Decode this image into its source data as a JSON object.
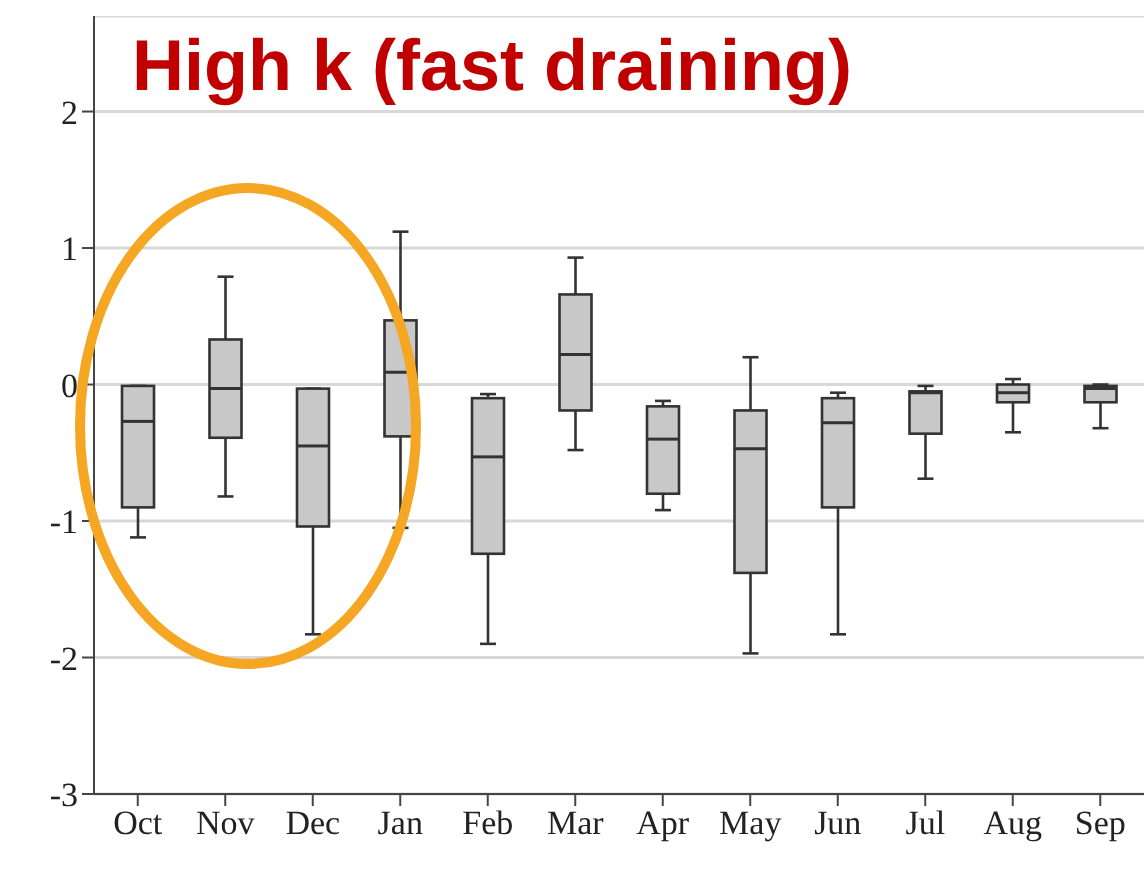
{
  "chart_data": {
    "type": "box",
    "title": "High k (fast draining)",
    "categories": [
      "Oct",
      "Nov",
      "Dec",
      "Jan",
      "Feb",
      "Mar",
      "Apr",
      "May",
      "Jun",
      "Jul",
      "Aug",
      "Sep"
    ],
    "boxes": [
      {
        "low": -1.12,
        "q1": -0.9,
        "median": -0.27,
        "q3": -0.01,
        "high": -0.01
      },
      {
        "low": -0.82,
        "q1": -0.39,
        "median": -0.03,
        "q3": 0.33,
        "high": 0.79
      },
      {
        "low": -1.83,
        "q1": -1.04,
        "median": -0.45,
        "q3": -0.03,
        "high": -0.03
      },
      {
        "low": -1.05,
        "q1": -0.38,
        "median": 0.09,
        "q3": 0.47,
        "high": 1.12
      },
      {
        "low": -1.9,
        "q1": -1.24,
        "median": -0.53,
        "q3": -0.1,
        "high": -0.07
      },
      {
        "low": -0.48,
        "q1": -0.19,
        "median": 0.22,
        "q3": 0.66,
        "high": 0.93
      },
      {
        "low": -0.92,
        "q1": -0.8,
        "median": -0.4,
        "q3": -0.16,
        "high": -0.12
      },
      {
        "low": -1.97,
        "q1": -1.38,
        "median": -0.47,
        "q3": -0.19,
        "high": 0.2
      },
      {
        "low": -1.83,
        "q1": -0.9,
        "median": -0.28,
        "q3": -0.1,
        "high": -0.06
      },
      {
        "low": -0.69,
        "q1": -0.36,
        "median": -0.06,
        "q3": -0.05,
        "high": -0.01
      },
      {
        "low": -0.35,
        "q1": -0.13,
        "median": -0.06,
        "q3": 0,
        "high": 0.04
      },
      {
        "low": -0.32,
        "q1": -0.13,
        "median": -0.03,
        "q3": -0.01,
        "high": 0
      }
    ],
    "color": "#c8c8c8",
    "ylim": [
      -3,
      2.7
    ],
    "yticks": [
      -3,
      -2,
      -1,
      0,
      1,
      2
    ],
    "grid": "y"
  }
}
